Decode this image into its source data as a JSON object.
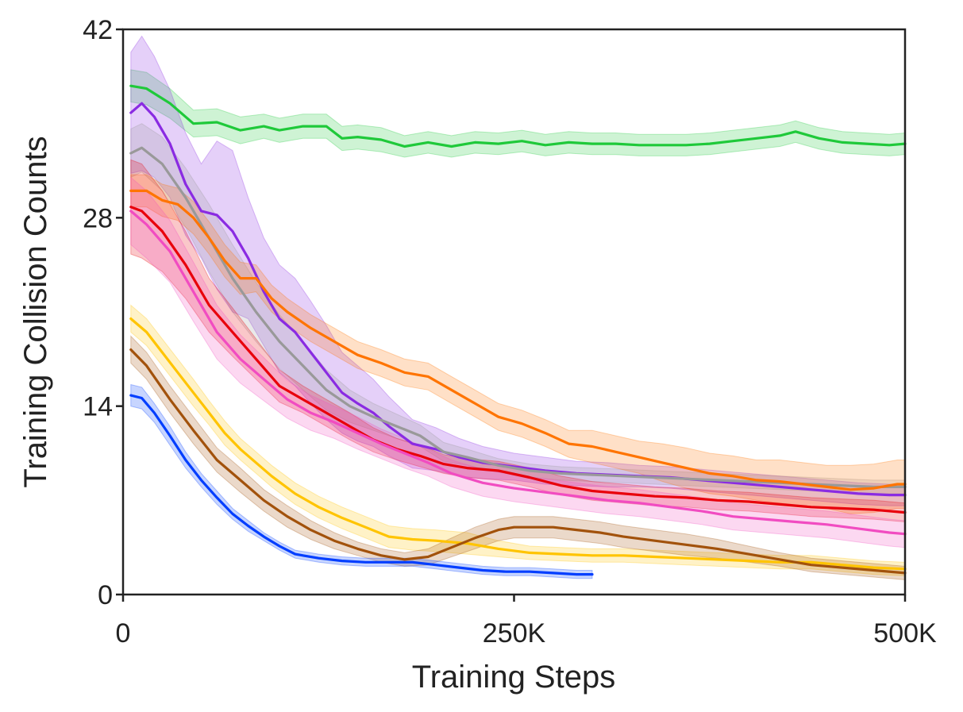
{
  "chart_data": {
    "type": "line",
    "title": "",
    "xlabel": "Training Steps",
    "ylabel": "Training Collision Counts",
    "xlim": [
      0,
      500000
    ],
    "ylim": [
      0,
      42
    ],
    "xticks": [
      0,
      250000,
      500000
    ],
    "xtick_labels": [
      "0",
      "250K",
      "500K"
    ],
    "yticks": [
      0,
      14,
      28,
      42
    ],
    "ytick_labels": [
      "0",
      "14",
      "28",
      "42"
    ],
    "grid": false,
    "legend": "none",
    "series": [
      {
        "color": "#1fc93a",
        "x": [
          5000,
          15000,
          30000,
          45000,
          60000,
          75000,
          90000,
          100000,
          115000,
          130000,
          140000,
          150000,
          165000,
          180000,
          195000,
          210000,
          225000,
          240000,
          255000,
          270000,
          285000,
          300000,
          315000,
          330000,
          345000,
          360000,
          375000,
          390000,
          405000,
          420000,
          430000,
          445000,
          460000,
          475000,
          490000,
          500000
        ],
        "y": [
          37.8,
          37.6,
          36.5,
          35.0,
          35.1,
          34.5,
          34.8,
          34.5,
          34.8,
          34.8,
          33.9,
          34.0,
          33.8,
          33.3,
          33.6,
          33.3,
          33.6,
          33.5,
          33.7,
          33.4,
          33.6,
          33.5,
          33.5,
          33.4,
          33.4,
          33.4,
          33.5,
          33.7,
          33.9,
          34.1,
          34.4,
          33.9,
          33.6,
          33.5,
          33.4,
          33.5
        ],
        "band": [
          1.2,
          1.2,
          1.1,
          1.0,
          1.0,
          1.0,
          0.9,
          0.9,
          0.9,
          0.9,
          0.9,
          0.9,
          0.9,
          0.8,
          0.8,
          0.8,
          0.8,
          0.8,
          0.8,
          0.8,
          0.8,
          0.8,
          0.8,
          0.8,
          0.8,
          0.8,
          0.8,
          0.8,
          0.8,
          0.8,
          0.8,
          0.8,
          0.8,
          0.8,
          0.8,
          0.8
        ]
      },
      {
        "color": "#8a2be2",
        "x": [
          5000,
          12000,
          20000,
          30000,
          40000,
          50000,
          60000,
          70000,
          80000,
          90000,
          100000,
          110000,
          120000,
          130000,
          140000,
          150000,
          160000,
          170000,
          185000,
          200000,
          215000,
          230000,
          250000,
          270000,
          290000,
          310000,
          330000,
          350000,
          370000,
          390000,
          410000,
          430000,
          450000,
          470000,
          490000,
          500000
        ],
        "y": [
          35.8,
          36.5,
          35.5,
          33.5,
          30.5,
          28.5,
          28.2,
          27.0,
          25.0,
          22.5,
          20.5,
          19.5,
          18.0,
          16.5,
          15.0,
          14.2,
          13.5,
          12.5,
          11.2,
          10.8,
          10.2,
          9.8,
          9.5,
          9.2,
          9.0,
          8.9,
          8.8,
          8.7,
          8.5,
          8.3,
          8.1,
          7.9,
          7.7,
          7.5,
          7.4,
          7.4
        ],
        "band": [
          4.5,
          5.0,
          4.5,
          4.0,
          3.8,
          3.5,
          5.5,
          6.0,
          4.5,
          4.0,
          4.0,
          4.0,
          3.8,
          3.5,
          3.0,
          2.8,
          2.5,
          2.2,
          1.8,
          1.6,
          1.4,
          1.2,
          1.0,
          1.0,
          0.9,
          0.9,
          0.8,
          0.8,
          0.8,
          0.8,
          0.8,
          0.8,
          0.8,
          0.8,
          0.8,
          0.8
        ]
      },
      {
        "color": "#999999",
        "x": [
          5000,
          12000,
          25000,
          40000,
          55000,
          70000,
          85000,
          100000,
          115000,
          130000,
          145000,
          160000,
          175000,
          190000,
          205000,
          220000,
          240000,
          260000,
          280000,
          300000,
          320000,
          340000,
          360000,
          380000,
          400000,
          420000,
          440000,
          460000,
          480000,
          500000
        ],
        "y": [
          32.8,
          33.2,
          32.0,
          29.5,
          26.5,
          23.5,
          21.0,
          18.8,
          17.0,
          15.2,
          14.0,
          13.2,
          12.5,
          11.8,
          10.6,
          10.2,
          9.6,
          9.2,
          9.0,
          8.9,
          8.8,
          8.7,
          8.6,
          8.5,
          8.4,
          8.3,
          8.2,
          8.1,
          8.0,
          8.0
        ],
        "band": [
          1.8,
          1.8,
          2.0,
          2.2,
          2.5,
          2.5,
          2.2,
          2.0,
          1.8,
          1.5,
          1.2,
          1.0,
          0.9,
          0.8,
          0.7,
          0.6,
          0.5,
          0.5,
          0.5,
          0.5,
          0.5,
          0.5,
          0.5,
          0.5,
          0.5,
          0.5,
          0.5,
          0.5,
          0.5,
          0.5
        ]
      },
      {
        "color": "#ff7400",
        "x": [
          5000,
          15000,
          25000,
          35000,
          45000,
          55000,
          65000,
          75000,
          85000,
          95000,
          105000,
          120000,
          135000,
          150000,
          165000,
          180000,
          195000,
          210000,
          225000,
          240000,
          255000,
          270000,
          285000,
          300000,
          315000,
          330000,
          345000,
          360000,
          375000,
          390000,
          405000,
          420000,
          435000,
          450000,
          465000,
          480000,
          495000,
          500000
        ],
        "y": [
          30.0,
          30.0,
          29.3,
          29.0,
          28.0,
          26.5,
          24.8,
          23.5,
          23.5,
          22.0,
          21.0,
          19.8,
          18.8,
          17.8,
          17.2,
          16.5,
          16.2,
          15.2,
          14.2,
          13.2,
          12.7,
          12.0,
          11.2,
          11.0,
          10.6,
          10.2,
          9.8,
          9.4,
          9.0,
          8.8,
          8.5,
          8.4,
          8.2,
          8.0,
          7.8,
          7.9,
          8.2,
          8.2
        ],
        "band": [
          1.2,
          1.2,
          1.2,
          1.2,
          1.2,
          1.2,
          1.2,
          1.2,
          1.0,
          1.0,
          1.0,
          1.0,
          1.0,
          1.0,
          1.0,
          1.0,
          1.0,
          1.0,
          1.0,
          1.0,
          1.0,
          1.0,
          1.0,
          1.2,
          1.2,
          1.2,
          1.4,
          1.5,
          1.5,
          1.5,
          1.5,
          1.6,
          1.6,
          1.6,
          1.8,
          1.8,
          1.8,
          1.8
        ]
      },
      {
        "color": "#e8000b",
        "x": [
          5000,
          12000,
          25000,
          40000,
          55000,
          70000,
          85000,
          100000,
          115000,
          130000,
          145000,
          160000,
          175000,
          190000,
          205000,
          220000,
          240000,
          260000,
          280000,
          300000,
          320000,
          340000,
          360000,
          380000,
          400000,
          420000,
          440000,
          460000,
          480000,
          500000
        ],
        "y": [
          28.8,
          28.5,
          27.0,
          24.5,
          21.5,
          19.5,
          17.5,
          15.5,
          14.5,
          13.5,
          12.5,
          11.5,
          10.8,
          10.3,
          9.7,
          9.4,
          9.2,
          8.7,
          8.1,
          7.7,
          7.5,
          7.3,
          7.2,
          7.0,
          6.9,
          6.7,
          6.5,
          6.4,
          6.3,
          6.1
        ],
        "band": [
          3.5,
          3.5,
          3.0,
          2.5,
          2.0,
          1.8,
          1.5,
          1.2,
          1.0,
          1.0,
          1.0,
          0.9,
          0.8,
          0.8,
          0.7,
          0.7,
          0.7,
          0.7,
          0.7,
          0.7,
          0.7,
          0.7,
          0.7,
          0.7,
          0.7,
          0.7,
          0.7,
          0.7,
          0.7,
          0.7
        ]
      },
      {
        "color": "#f14cc1",
        "x": [
          5000,
          15000,
          30000,
          45000,
          60000,
          75000,
          90000,
          105000,
          120000,
          135000,
          150000,
          165000,
          180000,
          195000,
          210000,
          230000,
          250000,
          270000,
          290000,
          310000,
          330000,
          350000,
          370000,
          390000,
          410000,
          430000,
          450000,
          470000,
          490000,
          500000
        ],
        "y": [
          28.5,
          27.5,
          25.5,
          22.5,
          19.5,
          17.5,
          16.0,
          14.5,
          13.5,
          12.8,
          12.0,
          11.2,
          10.5,
          9.8,
          9.0,
          8.3,
          7.9,
          7.6,
          7.3,
          7.0,
          6.8,
          6.5,
          6.2,
          5.8,
          5.6,
          5.4,
          5.2,
          4.9,
          4.6,
          4.5
        ],
        "band": [
          2.5,
          2.5,
          2.3,
          2.2,
          2.0,
          1.8,
          1.6,
          1.4,
          1.3,
          1.2,
          1.2,
          1.1,
          1.1,
          1.0,
          1.0,
          1.0,
          1.0,
          1.0,
          1.0,
          1.0,
          1.0,
          1.0,
          1.0,
          1.0,
          1.0,
          1.0,
          1.0,
          1.0,
          1.0,
          1.0
        ]
      },
      {
        "color": "#ffc400",
        "x": [
          5000,
          15000,
          25000,
          35000,
          45000,
          55000,
          65000,
          75000,
          85000,
          95000,
          110000,
          125000,
          140000,
          155000,
          170000,
          185000,
          200000,
          220000,
          240000,
          260000,
          280000,
          300000,
          320000,
          340000,
          360000,
          380000,
          400000,
          420000,
          440000,
          460000,
          480000,
          500000
        ],
        "y": [
          20.5,
          19.5,
          18.0,
          16.5,
          15.0,
          13.5,
          12.0,
          10.8,
          9.8,
          8.8,
          7.5,
          6.5,
          5.7,
          5.0,
          4.3,
          4.1,
          4.0,
          3.8,
          3.4,
          3.1,
          3.0,
          2.9,
          2.9,
          2.8,
          2.7,
          2.6,
          2.5,
          2.4,
          2.4,
          2.2,
          2.0,
          1.9
        ],
        "band": [
          1.0,
          1.0,
          1.0,
          1.0,
          1.0,
          0.9,
          0.9,
          0.8,
          0.8,
          0.8,
          0.8,
          0.8,
          0.8,
          0.8,
          0.8,
          0.8,
          0.8,
          0.8,
          0.6,
          0.5,
          0.5,
          0.5,
          0.5,
          0.5,
          0.5,
          0.5,
          0.5,
          0.5,
          0.5,
          0.5,
          0.5,
          0.5
        ]
      },
      {
        "color": "#a2520c",
        "x": [
          5000,
          15000,
          30000,
          45000,
          60000,
          75000,
          90000,
          105000,
          120000,
          135000,
          150000,
          165000,
          180000,
          195000,
          210000,
          225000,
          240000,
          250000,
          260000,
          275000,
          290000,
          305000,
          320000,
          340000,
          360000,
          380000,
          400000,
          420000,
          440000,
          460000,
          480000,
          500000
        ],
        "y": [
          18.2,
          17.0,
          14.5,
          12.2,
          10.0,
          8.5,
          7.0,
          5.8,
          4.8,
          4.0,
          3.4,
          2.9,
          2.6,
          2.8,
          3.5,
          4.2,
          4.8,
          5.0,
          5.0,
          5.0,
          4.8,
          4.6,
          4.3,
          4.0,
          3.7,
          3.4,
          3.0,
          2.6,
          2.2,
          2.0,
          1.8,
          1.6
        ],
        "band": [
          1.0,
          1.0,
          1.0,
          1.0,
          0.9,
          0.9,
          0.8,
          0.8,
          0.7,
          0.6,
          0.5,
          0.5,
          0.5,
          0.6,
          0.7,
          0.8,
          0.8,
          0.8,
          0.8,
          0.8,
          0.8,
          0.8,
          0.8,
          0.8,
          0.8,
          0.7,
          0.6,
          0.5,
          0.5,
          0.5,
          0.5,
          0.5
        ]
      },
      {
        "color": "#023eff",
        "x": [
          5000,
          12000,
          20000,
          30000,
          40000,
          50000,
          60000,
          70000,
          80000,
          90000,
          100000,
          110000,
          125000,
          140000,
          155000,
          170000,
          185000,
          200000,
          215000,
          230000,
          245000,
          260000,
          275000,
          290000,
          300000
        ],
        "y": [
          14.8,
          14.6,
          13.5,
          11.8,
          10.0,
          8.5,
          7.2,
          6.0,
          5.1,
          4.3,
          3.6,
          3.0,
          2.7,
          2.5,
          2.4,
          2.4,
          2.4,
          2.2,
          2.0,
          1.8,
          1.7,
          1.7,
          1.6,
          1.5,
          1.5
        ],
        "band": [
          0.8,
          0.8,
          0.7,
          0.7,
          0.6,
          0.5,
          0.5,
          0.4,
          0.4,
          0.3,
          0.3,
          0.3,
          0.3,
          0.3,
          0.3,
          0.3,
          0.3,
          0.3,
          0.3,
          0.3,
          0.3,
          0.3,
          0.3,
          0.3,
          0.3
        ]
      }
    ]
  }
}
